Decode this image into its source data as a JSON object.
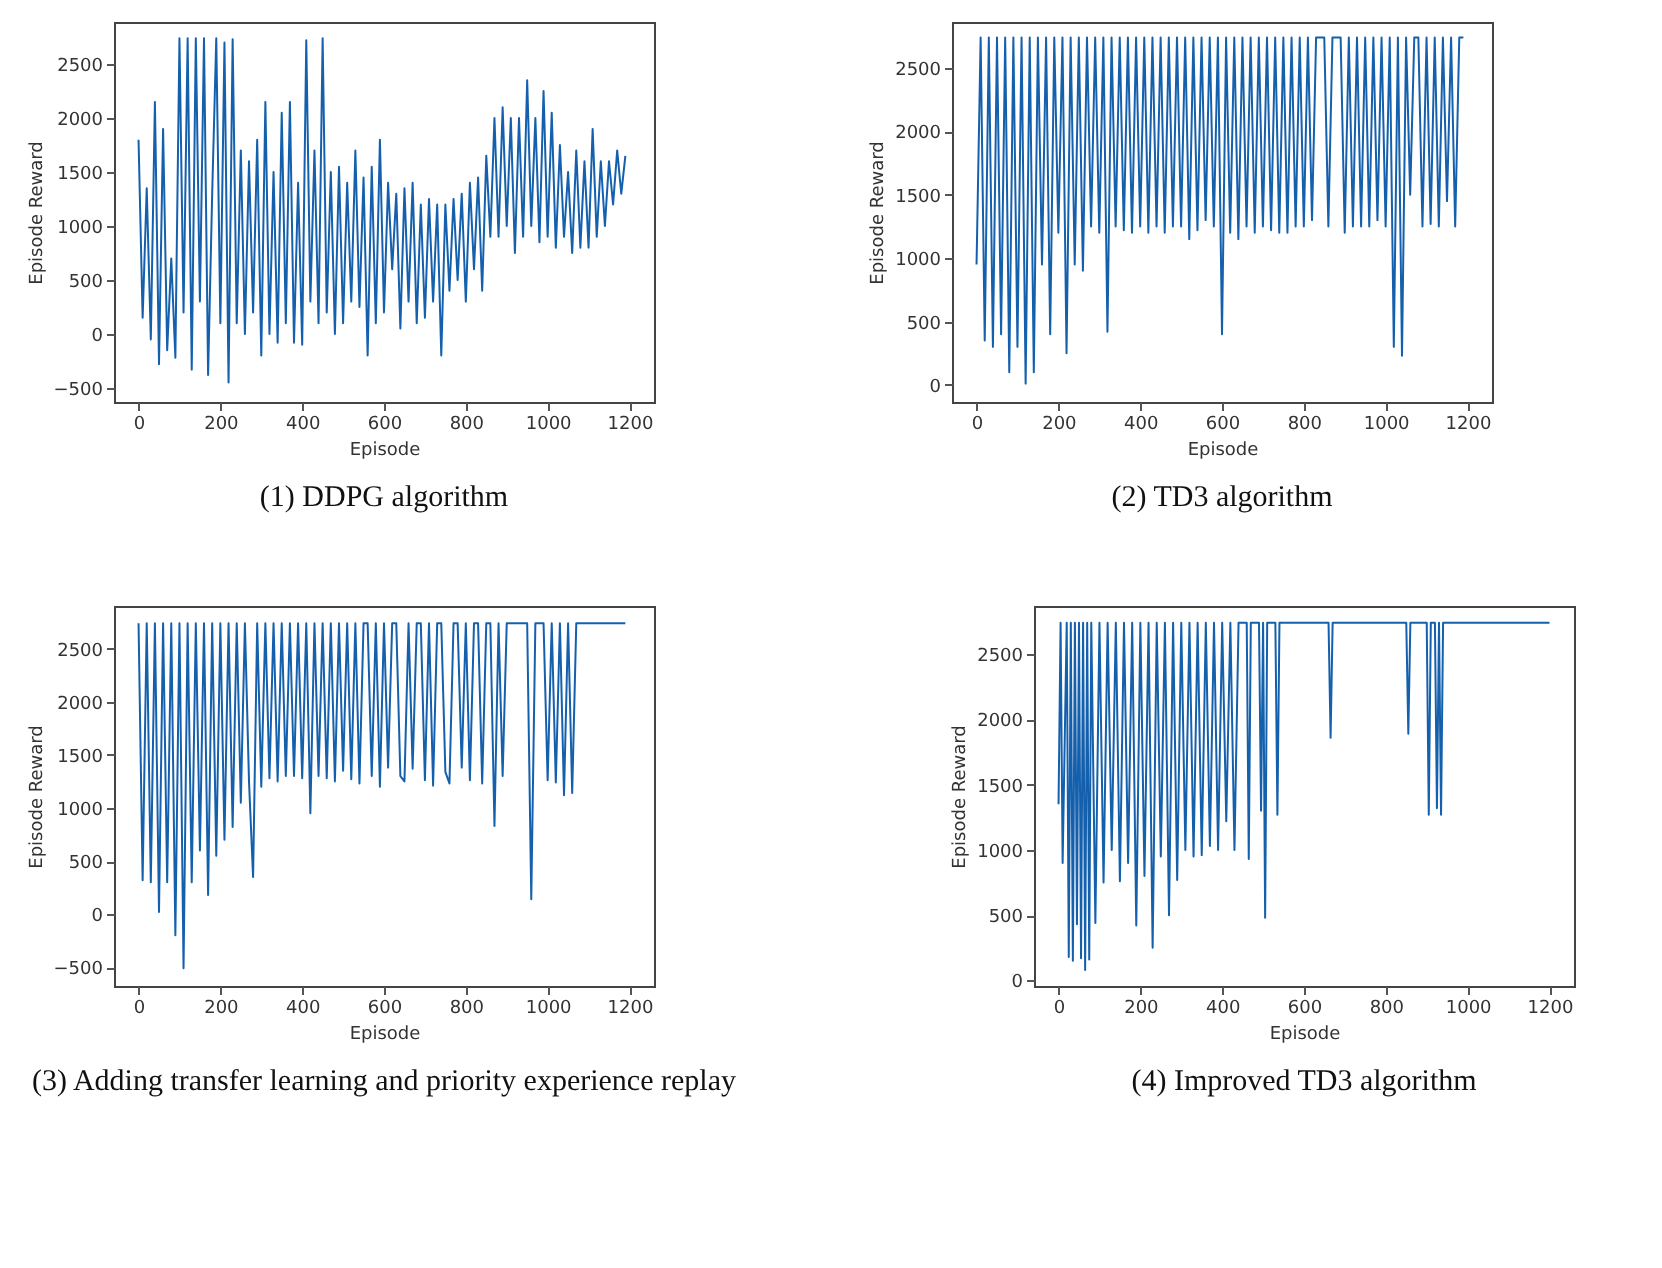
{
  "chart_data": [
    {
      "type": "line",
      "title": "(1) DDPG algorithm",
      "xlabel": "Episode",
      "ylabel": "Episode Reward",
      "grid": false,
      "line_style": "solid",
      "x": [
        0,
        10,
        20,
        30,
        40,
        50,
        60,
        70,
        80,
        90,
        100,
        110,
        120,
        130,
        140,
        150,
        160,
        170,
        180,
        190,
        200,
        210,
        220,
        230,
        240,
        250,
        260,
        270,
        280,
        290,
        300,
        310,
        320,
        330,
        340,
        350,
        360,
        370,
        380,
        390,
        400,
        410,
        420,
        430,
        440,
        450,
        460,
        470,
        480,
        490,
        500,
        510,
        520,
        530,
        540,
        550,
        560,
        570,
        580,
        590,
        600,
        610,
        620,
        630,
        640,
        650,
        660,
        670,
        680,
        690,
        700,
        710,
        720,
        730,
        740,
        750,
        760,
        770,
        780,
        790,
        800,
        810,
        820,
        830,
        840,
        850,
        860,
        870,
        880,
        890,
        900,
        910,
        920,
        930,
        940,
        950,
        960,
        970,
        980,
        990,
        1000,
        1010,
        1020,
        1030,
        1040,
        1050,
        1060,
        1070,
        1080,
        1090,
        1100,
        1110,
        1120,
        1130,
        1140,
        1150,
        1160,
        1170,
        1180,
        1190
      ],
      "series": [
        {
          "color": "#1560ad",
          "values": [
            1800,
            150,
            1350,
            -50,
            2150,
            -280,
            1900,
            -150,
            700,
            -220,
            2740,
            200,
            2740,
            -330,
            2740,
            300,
            2740,
            -380,
            1300,
            2740,
            100,
            2700,
            -450,
            2730,
            100,
            1700,
            0,
            1600,
            200,
            1800,
            -200,
            2150,
            0,
            1500,
            -80,
            2050,
            100,
            2150,
            -80,
            1400,
            -100,
            2720,
            300,
            1700,
            100,
            2740,
            200,
            1500,
            0,
            1550,
            100,
            1400,
            300,
            1700,
            250,
            1450,
            -200,
            1550,
            100,
            1800,
            200,
            1400,
            600,
            1300,
            50,
            1350,
            300,
            1400,
            100,
            1200,
            150,
            1250,
            300,
            1200,
            -200,
            1200,
            400,
            1250,
            500,
            1300,
            300,
            1400,
            600,
            1450,
            400,
            1650,
            900,
            2000,
            900,
            2100,
            1000,
            2000,
            750,
            2000,
            900,
            2350,
            1000,
            2000,
            850,
            2250,
            900,
            2050,
            800,
            1750,
            900,
            1500,
            750,
            1700,
            800,
            1600,
            800,
            1900,
            900,
            1600,
            1000,
            1600,
            1200,
            1700,
            1300,
            1650
          ]
        }
      ],
      "xlim": [
        -60,
        1260
      ],
      "ylim": [
        -630,
        2890
      ],
      "xticks": [
        0,
        200,
        400,
        600,
        800,
        1000,
        1200
      ],
      "yticks": [
        -500,
        0,
        500,
        1000,
        1500,
        2000,
        2500
      ]
    },
    {
      "type": "line",
      "title": "(2) TD3 algorithm",
      "xlabel": "Episode",
      "ylabel": "Episode Reward",
      "grid": false,
      "line_style": "solid",
      "x": [
        0,
        10,
        20,
        30,
        40,
        50,
        60,
        70,
        80,
        90,
        100,
        110,
        120,
        130,
        140,
        150,
        160,
        170,
        180,
        190,
        200,
        210,
        220,
        230,
        240,
        250,
        260,
        270,
        280,
        290,
        300,
        310,
        320,
        330,
        340,
        350,
        360,
        370,
        380,
        390,
        400,
        410,
        420,
        430,
        440,
        450,
        460,
        470,
        480,
        490,
        500,
        510,
        520,
        530,
        540,
        550,
        560,
        570,
        580,
        590,
        600,
        610,
        620,
        630,
        640,
        650,
        660,
        670,
        680,
        690,
        700,
        710,
        720,
        730,
        740,
        750,
        760,
        770,
        780,
        790,
        800,
        810,
        820,
        830,
        840,
        850,
        860,
        870,
        880,
        890,
        900,
        910,
        920,
        930,
        940,
        950,
        960,
        970,
        980,
        990,
        1000,
        1010,
        1020,
        1030,
        1040,
        1050,
        1060,
        1070,
        1080,
        1090,
        1100,
        1110,
        1120,
        1130,
        1140,
        1150,
        1160,
        1170,
        1180,
        1190
      ],
      "series": [
        {
          "color": "#1560ad",
          "values": [
            950,
            2740,
            350,
            2740,
            300,
            2740,
            400,
            2740,
            100,
            2740,
            300,
            2740,
            10,
            2740,
            100,
            2740,
            950,
            2740,
            400,
            2740,
            1200,
            2740,
            250,
            2740,
            950,
            2740,
            900,
            2740,
            1250,
            2740,
            1200,
            2740,
            420,
            2740,
            1250,
            2740,
            1220,
            2740,
            1200,
            2740,
            1250,
            2740,
            1200,
            2740,
            1250,
            2740,
            1200,
            2740,
            1250,
            2740,
            1250,
            2740,
            1150,
            2740,
            1220,
            2740,
            1300,
            2740,
            1250,
            2740,
            400,
            2740,
            1200,
            2740,
            1150,
            2740,
            1250,
            2740,
            1200,
            2740,
            1250,
            2740,
            1220,
            2740,
            1200,
            2740,
            1200,
            2740,
            1250,
            2740,
            1250,
            2740,
            1300,
            2740,
            2740,
            2740,
            1250,
            2740,
            2740,
            2740,
            1200,
            2740,
            1250,
            2740,
            1250,
            2740,
            1250,
            2740,
            1300,
            2740,
            1250,
            2740,
            300,
            2740,
            230,
            2740,
            1500,
            2740,
            2740,
            1250,
            2740,
            1270,
            2740,
            1250,
            2740,
            1450,
            2740,
            1250,
            2740,
            2740
          ]
        }
      ],
      "xlim": [
        -60,
        1260
      ],
      "ylim": [
        -135,
        2863
      ],
      "xticks": [
        0,
        200,
        400,
        600,
        800,
        1000,
        1200
      ],
      "yticks": [
        0,
        500,
        1000,
        1500,
        2000,
        2500
      ]
    },
    {
      "type": "line",
      "title": "(3) Adding transfer learning and priority experience replay",
      "xlabel": "Episode",
      "ylabel": "Episode Reward",
      "grid": false,
      "line_style": "solid",
      "x": [
        0,
        10,
        20,
        30,
        40,
        50,
        60,
        70,
        80,
        90,
        100,
        110,
        120,
        130,
        140,
        150,
        160,
        170,
        180,
        190,
        200,
        210,
        220,
        230,
        240,
        250,
        260,
        270,
        280,
        290,
        300,
        310,
        320,
        330,
        340,
        350,
        360,
        370,
        380,
        390,
        400,
        410,
        420,
        430,
        440,
        450,
        460,
        470,
        480,
        490,
        500,
        510,
        520,
        530,
        540,
        550,
        560,
        570,
        580,
        590,
        600,
        610,
        620,
        630,
        640,
        650,
        660,
        670,
        680,
        690,
        700,
        710,
        720,
        730,
        740,
        750,
        760,
        770,
        780,
        790,
        800,
        810,
        820,
        830,
        840,
        850,
        860,
        870,
        880,
        890,
        900,
        910,
        920,
        930,
        940,
        950,
        960,
        970,
        980,
        990,
        1000,
        1010,
        1020,
        1030,
        1040,
        1050,
        1060,
        1070,
        1080,
        1090,
        1100,
        1110,
        1120,
        1130,
        1140,
        1150,
        1160,
        1170,
        1180,
        1190
      ],
      "series": [
        {
          "color": "#1560ad",
          "values": [
            2740,
            320,
            2740,
            300,
            2740,
            20,
            2740,
            300,
            2740,
            -200,
            2740,
            -510,
            2740,
            300,
            2740,
            600,
            2740,
            180,
            2740,
            550,
            2740,
            700,
            2740,
            820,
            2740,
            1050,
            2740,
            1250,
            350,
            2740,
            1200,
            2740,
            1280,
            2740,
            1250,
            2740,
            1300,
            2740,
            1300,
            2740,
            1280,
            2740,
            950,
            2740,
            1300,
            2740,
            1280,
            2740,
            1250,
            2740,
            1350,
            2740,
            1270,
            2740,
            1230,
            2740,
            2740,
            1300,
            2740,
            1200,
            2740,
            1380,
            2740,
            2740,
            1300,
            1250,
            2740,
            1370,
            2740,
            2740,
            1260,
            2740,
            1210,
            2740,
            2740,
            1340,
            1230,
            2740,
            2740,
            1380,
            2740,
            1260,
            2740,
            2740,
            1230,
            2740,
            2740,
            830,
            2740,
            1300,
            2740,
            2740,
            2740,
            2740,
            2740,
            2740,
            140,
            2740,
            2740,
            2740,
            1260,
            2740,
            1240,
            2740,
            1120,
            2740,
            1140,
            2740,
            2740,
            2740,
            2740,
            2740,
            2740,
            2740,
            2740,
            2740,
            2740,
            2740,
            2740,
            2740
          ]
        }
      ],
      "xlim": [
        -60,
        1260
      ],
      "ylim": [
        -677,
        2902
      ],
      "xticks": [
        0,
        200,
        400,
        600,
        800,
        1000,
        1200
      ],
      "yticks": [
        -500,
        0,
        500,
        1000,
        1500,
        2000,
        2500
      ]
    },
    {
      "type": "line",
      "title": "(4) Improved TD3 algorithm",
      "xlabel": "Episode",
      "ylabel": "Episode Reward",
      "grid": false,
      "line_style": "solid",
      "x": [
        0,
        5,
        10,
        20,
        25,
        30,
        35,
        40,
        45,
        50,
        55,
        60,
        65,
        70,
        75,
        80,
        90,
        100,
        110,
        120,
        130,
        140,
        150,
        160,
        170,
        180,
        190,
        200,
        210,
        220,
        230,
        240,
        250,
        260,
        270,
        280,
        290,
        300,
        310,
        320,
        330,
        340,
        350,
        360,
        370,
        380,
        390,
        400,
        410,
        420,
        430,
        440,
        460,
        465,
        470,
        490,
        495,
        500,
        505,
        510,
        530,
        535,
        540,
        660,
        665,
        670,
        850,
        855,
        860,
        900,
        905,
        910,
        920,
        925,
        930,
        935,
        940,
        1200
      ],
      "series": [
        {
          "color": "#1560ad",
          "values": [
            1350,
            2740,
            900,
            2740,
            180,
            2740,
            150,
            2740,
            430,
            2740,
            170,
            2740,
            80,
            2740,
            160,
            2740,
            440,
            2740,
            750,
            2740,
            1000,
            2740,
            760,
            2740,
            900,
            2740,
            420,
            2740,
            800,
            2740,
            250,
            2740,
            950,
            2740,
            500,
            2740,
            770,
            2740,
            1000,
            2740,
            950,
            2740,
            960,
            2740,
            1030,
            2740,
            1000,
            2740,
            1220,
            2740,
            1000,
            2740,
            2740,
            930,
            2740,
            2740,
            1300,
            2740,
            480,
            2740,
            2740,
            1270,
            2740,
            2740,
            1860,
            2740,
            2740,
            1890,
            2740,
            2740,
            1270,
            2740,
            2740,
            1320,
            2740,
            1270,
            2740,
            2740
          ]
        }
      ],
      "xlim": [
        -60,
        1260
      ],
      "ylim": [
        -43,
        2869
      ],
      "xticks": [
        0,
        200,
        400,
        600,
        800,
        1000,
        1200
      ],
      "yticks": [
        0,
        500,
        1000,
        1500,
        2000,
        2500
      ]
    }
  ]
}
